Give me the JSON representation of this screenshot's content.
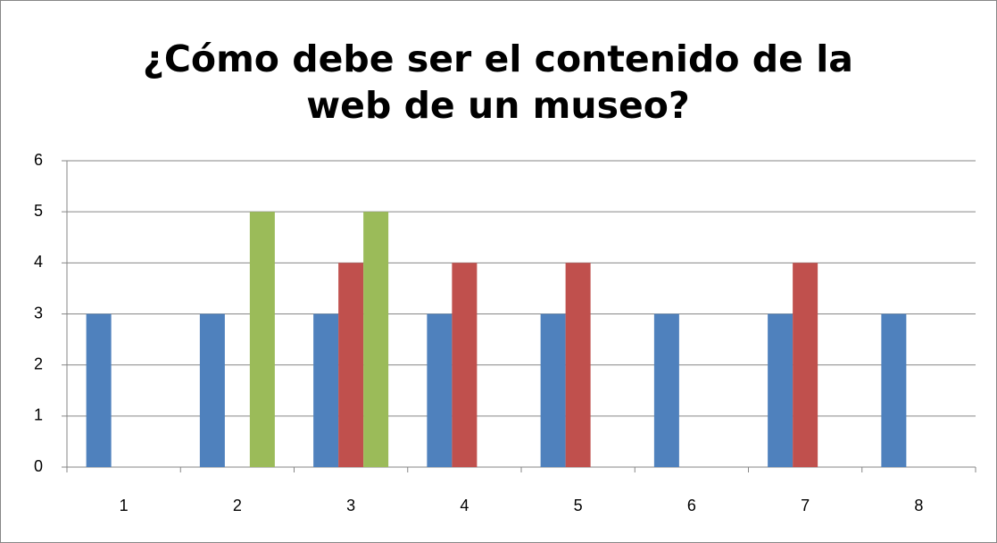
{
  "chart_data": {
    "type": "bar",
    "title": "¿Cómo debe ser el contenido de la web de un museo?",
    "categories": [
      "1",
      "2",
      "3",
      "4",
      "5",
      "6",
      "7",
      "8"
    ],
    "series": [
      {
        "color": "#4f81bd",
        "values": [
          3,
          3,
          3,
          3,
          3,
          3,
          3,
          3
        ]
      },
      {
        "color": "#c0504d",
        "values": [
          0,
          0,
          4,
          4,
          4,
          0,
          4,
          0
        ]
      },
      {
        "color": "#9bbb59",
        "values": [
          0,
          5,
          5,
          0,
          0,
          0,
          0,
          0
        ]
      }
    ],
    "ylim": [
      0,
      6
    ],
    "yticks": [
      0,
      1,
      2,
      3,
      4,
      5,
      6
    ],
    "grid": true
  }
}
